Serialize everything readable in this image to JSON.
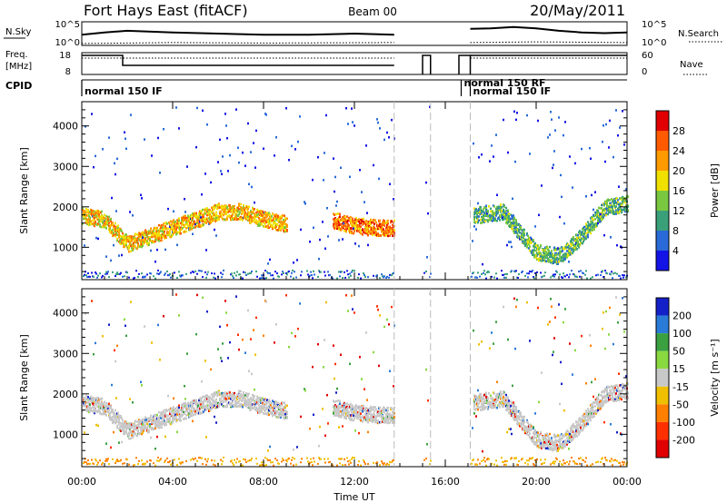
{
  "header": {
    "station": "Fort Hays East (fitACF)",
    "beam": "Beam 00",
    "date": "20/May/2011"
  },
  "noise_panel": {
    "left_label": "N.Sky",
    "left_ticks": [
      "10^5",
      "10^0"
    ],
    "right_ticks": [
      "10^5",
      "10^0"
    ],
    "right_label": "N.Search",
    "right_label_style": "dotted",
    "series": [
      {
        "style": "solid",
        "x": [
          0,
          1,
          2,
          4,
          6,
          8,
          10,
          12,
          13.75
        ],
        "y": [
          0.45,
          0.55,
          0.62,
          0.55,
          0.5,
          0.45,
          0.45,
          0.5,
          0.45
        ]
      },
      {
        "style": "dotted",
        "x": [
          0,
          4,
          8,
          13.75
        ],
        "y": [
          0.08,
          0.12,
          0.1,
          0.12
        ]
      },
      {
        "style": "solid",
        "x": [
          17.1,
          18,
          19,
          20,
          21,
          22,
          23,
          24
        ],
        "y": [
          0.7,
          0.72,
          0.78,
          0.72,
          0.62,
          0.55,
          0.52,
          0.55
        ]
      },
      {
        "style": "dotted",
        "x": [
          17.1,
          20,
          24
        ],
        "y": [
          0.12,
          0.15,
          0.12
        ]
      }
    ]
  },
  "freq_panel": {
    "left_label_1": "Freq.",
    "left_label_2": "[MHz]",
    "left_ticks": [
      "18",
      "8"
    ],
    "right_ticks": [
      "60",
      "0"
    ],
    "right_label": "Nave",
    "right_label_style": "dotted"
  },
  "cpid": {
    "label": "CPID",
    "segments": [
      {
        "start": 0,
        "end": 16.7,
        "text": "normal 150 IF"
      },
      {
        "start": 16.7,
        "end": 17.1,
        "text": "normal 150 RF"
      },
      {
        "start": 17.1,
        "end": 24,
        "text": "normal 150 IF"
      }
    ]
  },
  "power_panel": {
    "ylabel": "Slant Range [km]",
    "yticks": [
      1000,
      2000,
      3000,
      4000
    ],
    "ylim": [
      200,
      4600
    ],
    "colorbar_label": "Power [dB]",
    "colorbar_ticks": [
      "4",
      "8",
      "12",
      "16",
      "20",
      "24",
      "28"
    ],
    "colorbar_colors": [
      "#1414e6",
      "#2a6ad8",
      "#3aa07a",
      "#7ac840",
      "#f0e000",
      "#ff9a00",
      "#ff5a00",
      "#e00000"
    ]
  },
  "velocity_panel": {
    "ylabel": "Slant Range [km]",
    "yticks": [
      1000,
      2000,
      3000,
      4000
    ],
    "ylim": [
      200,
      4600
    ],
    "colorbar_label": "Velocity [m s⁻¹]",
    "colorbar_ticks": [
      "200",
      "100",
      "50",
      "15",
      "-15",
      "-50",
      "-100",
      "-200"
    ],
    "colorbar_colors": [
      "#1420c8",
      "#2a7ad8",
      "#3aa040",
      "#8ad840",
      "#c8c8c8",
      "#f0c000",
      "#ff8000",
      "#ff3000",
      "#e00000"
    ]
  },
  "xaxis": {
    "label": "Time UT",
    "ticks": [
      "00:00",
      "04:00",
      "08:00",
      "12:00",
      "16:00",
      "20:00",
      "00:00"
    ],
    "xlim": [
      0,
      24
    ]
  },
  "chart_data": {
    "type": "heatmap",
    "title": "Fort Hays East (fitACF)   Beam 00   20/May/2011",
    "xlabel": "Time UT",
    "ylabel": "Slant Range [km]",
    "xlim": [
      0,
      24
    ],
    "ylim": [
      200,
      4600
    ],
    "data_gaps_hours": [
      [
        13.75,
        15.0
      ],
      [
        15.35,
        17.1
      ]
    ],
    "freq_mhz": {
      "x": [
        0,
        1.8,
        1.8,
        13.75
      ],
      "y": [
        16.5,
        16.5,
        11,
        11
      ]
    },
    "echo_bands": [
      {
        "x": [
          0,
          1,
          2,
          3,
          4,
          5,
          6,
          7,
          8,
          9
        ],
        "range_km": [
          1800,
          1700,
          1100,
          1300,
          1500,
          1700,
          1900,
          1900,
          1700,
          1600
        ],
        "power_db": 22
      },
      {
        "x": [
          11,
          12,
          13,
          13.75
        ],
        "range_km": [
          1700,
          1550,
          1500,
          1500
        ],
        "power_db": 26
      },
      {
        "x": [
          17.2,
          18.5,
          20,
          21,
          22,
          23,
          24
        ],
        "range_km": [
          1800,
          1900,
          900,
          800,
          1300,
          2000,
          2100
        ],
        "power_db": 14
      }
    ]
  }
}
